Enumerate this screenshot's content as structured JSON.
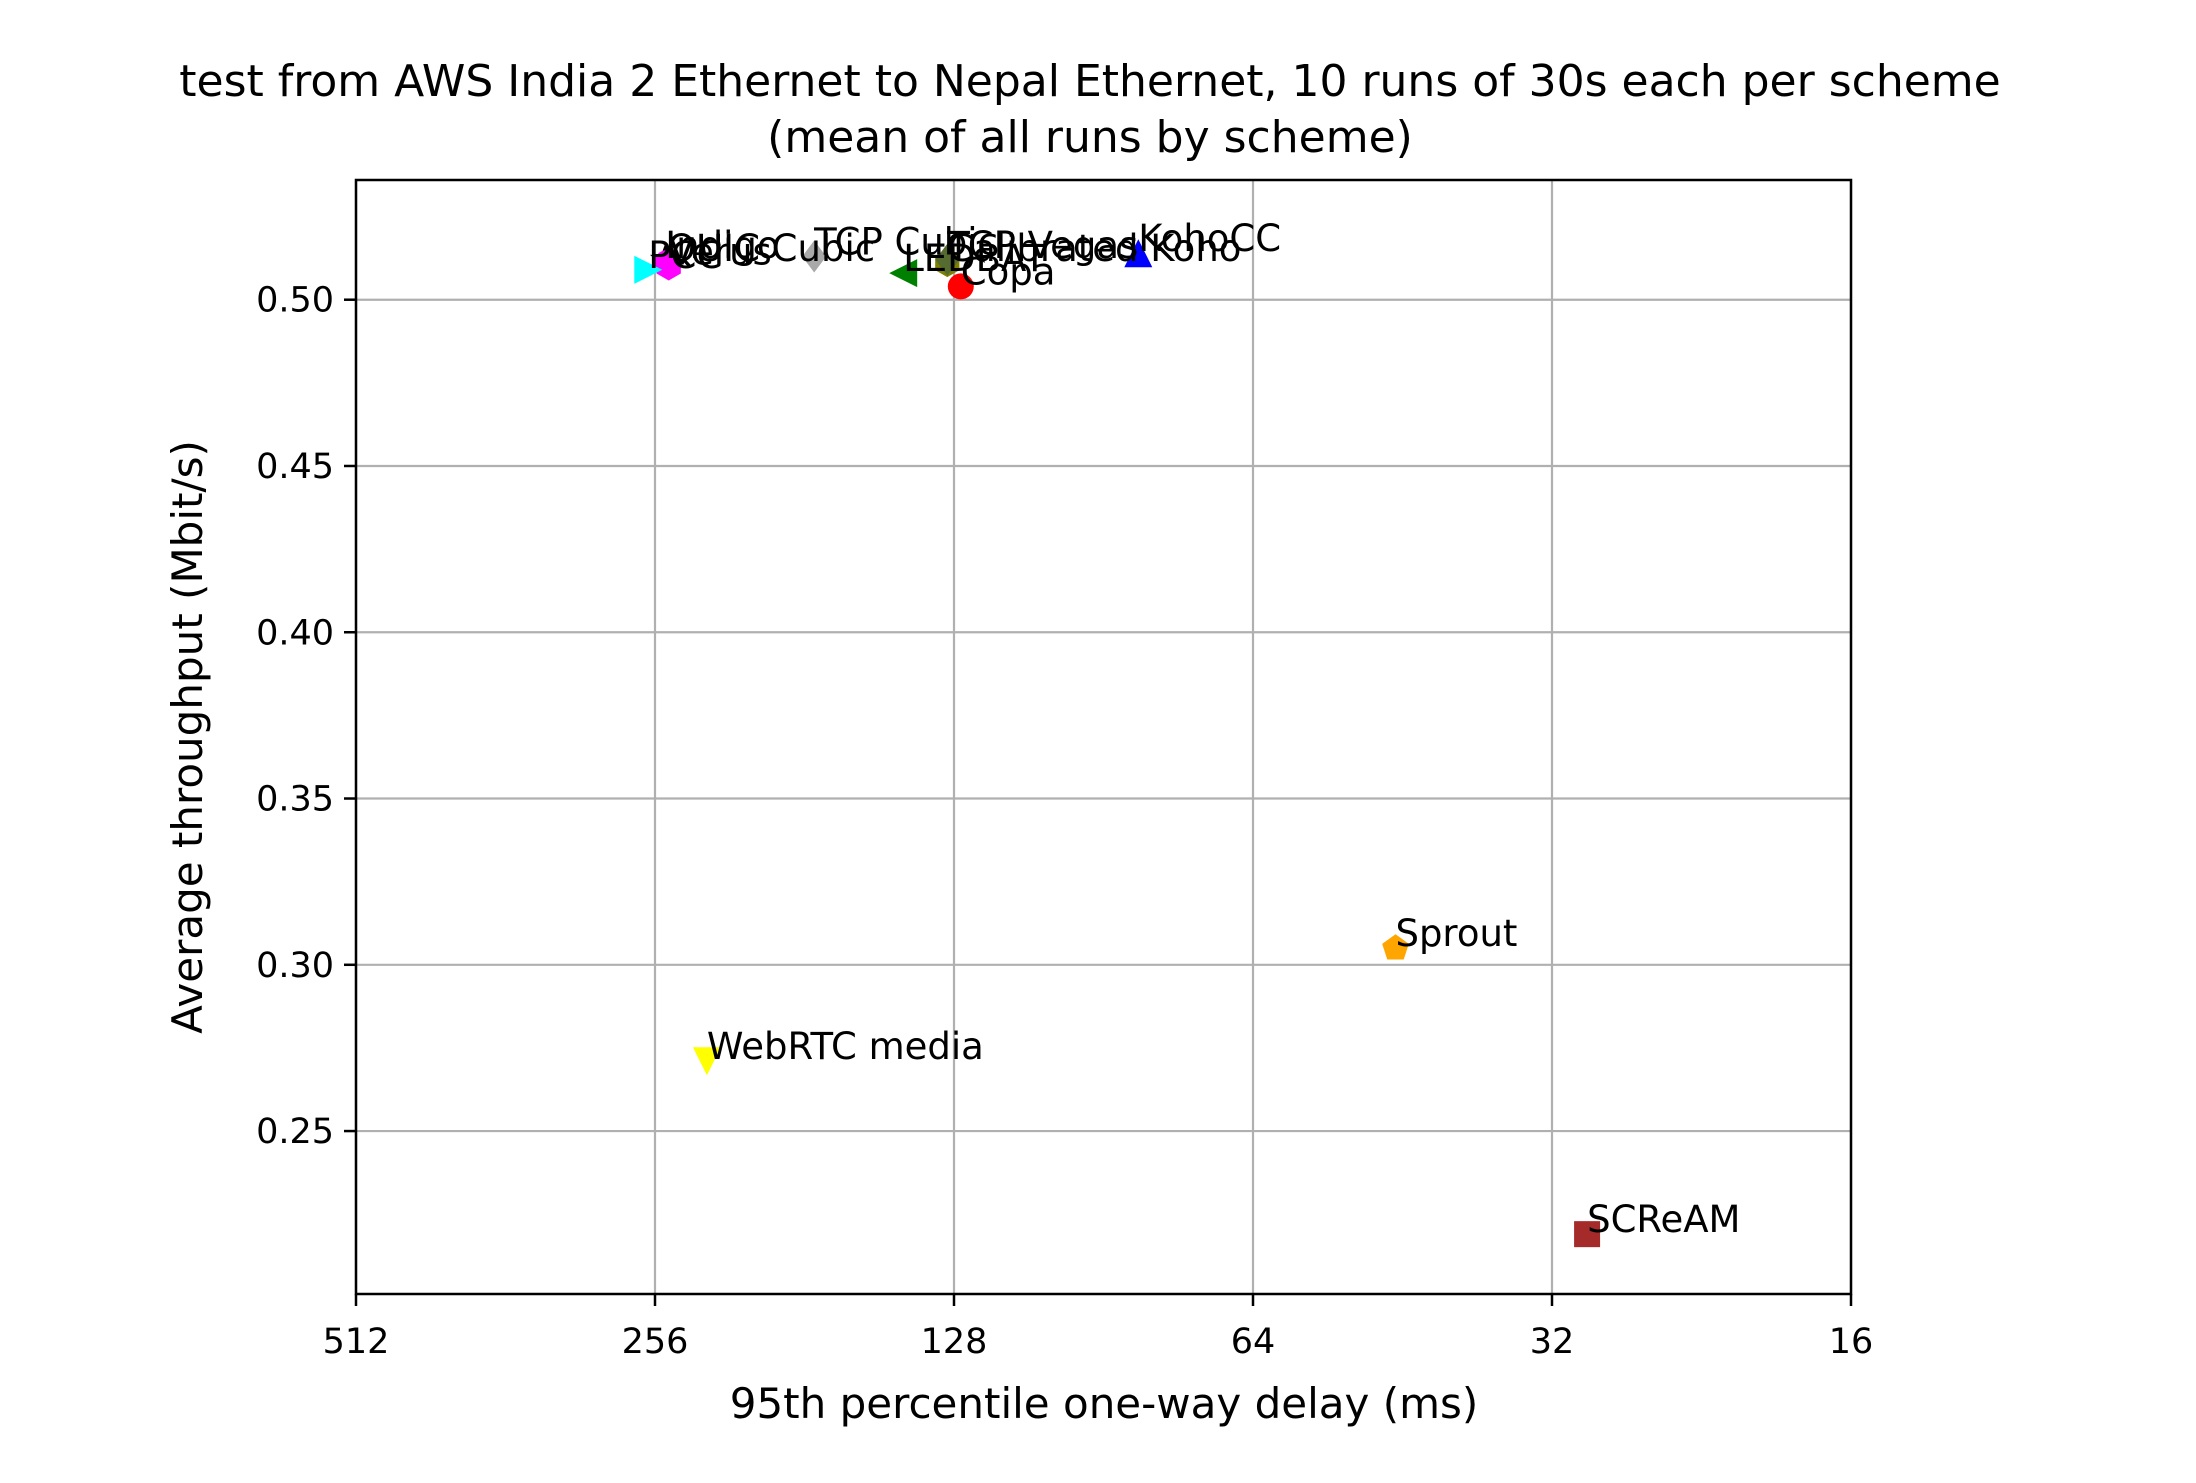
{
  "chart_data": {
    "type": "scatter",
    "title": "test from AWS India 2 Ethernet to Nepal Ethernet, 10 runs of 30s each per scheme",
    "subtitle": "(mean of all runs by scheme)",
    "xlabel": "95th percentile one-way delay (ms)",
    "ylabel": "Average throughput (Mbit/s)",
    "x_scale": "log2",
    "x_reversed": true,
    "xlim": [
      512,
      16
    ],
    "ylim": [
      0.201,
      0.536
    ],
    "x_ticks": [
      512,
      256,
      128,
      64,
      32,
      16
    ],
    "x_tick_labels": [
      "512",
      "256",
      "128",
      "64",
      "32",
      "16"
    ],
    "y_ticks": [
      0.25,
      0.3,
      0.35,
      0.4,
      0.45,
      0.5
    ],
    "y_tick_labels": [
      "0.25",
      "0.30",
      "0.35",
      "0.40",
      "0.45",
      "0.50"
    ],
    "grid": true,
    "points": [
      {
        "label": "SCReAM",
        "x": 29.5,
        "y": 0.219,
        "color": "#a52a2a",
        "marker": "square"
      },
      {
        "label": "Sprout",
        "x": 46,
        "y": 0.305,
        "color": "#ffa500",
        "marker": "pentagon"
      },
      {
        "label": "WebRTC media",
        "x": 227,
        "y": 0.271,
        "color": "#ffff00",
        "marker": "triangle-down"
      },
      {
        "label": "Copa",
        "x": 126,
        "y": 0.504,
        "color": "#ff0000",
        "marker": "circle"
      },
      {
        "label": "KohoCC",
        "x": 83.5,
        "y": 0.514,
        "color": "#0000ff",
        "marker": "triangle-up"
      },
      {
        "label": "LEDBAT",
        "x": 144,
        "y": 0.508,
        "color": "#008000",
        "marker": "triangle-left"
      },
      {
        "label": "Calibrated Koho",
        "x": 130,
        "y": 0.511,
        "color": "#808000",
        "marker": "hexagon"
      },
      {
        "label": "TCP Vegas",
        "x": 130,
        "y": 0.512,
        "color": "#556b2f",
        "marker": "diamond"
      },
      {
        "label": "TCP Cubic",
        "x": 177,
        "y": 0.513,
        "color": "#a9a9a9",
        "marker": "diamond"
      },
      {
        "label": "Indigo",
        "x": 250,
        "y": 0.512,
        "color": "#000000",
        "marker": "star"
      },
      {
        "label": "QUIC Cubic",
        "x": 249,
        "y": 0.511,
        "color": "#ff00ff",
        "marker": "circle"
      },
      {
        "label": "Verus",
        "x": 248,
        "y": 0.51,
        "color": "#ff00ff",
        "marker": "hexagon"
      },
      {
        "label": "PCC",
        "x": 260,
        "y": 0.509,
        "color": "#00ffff",
        "marker": "triangle-right"
      }
    ]
  }
}
